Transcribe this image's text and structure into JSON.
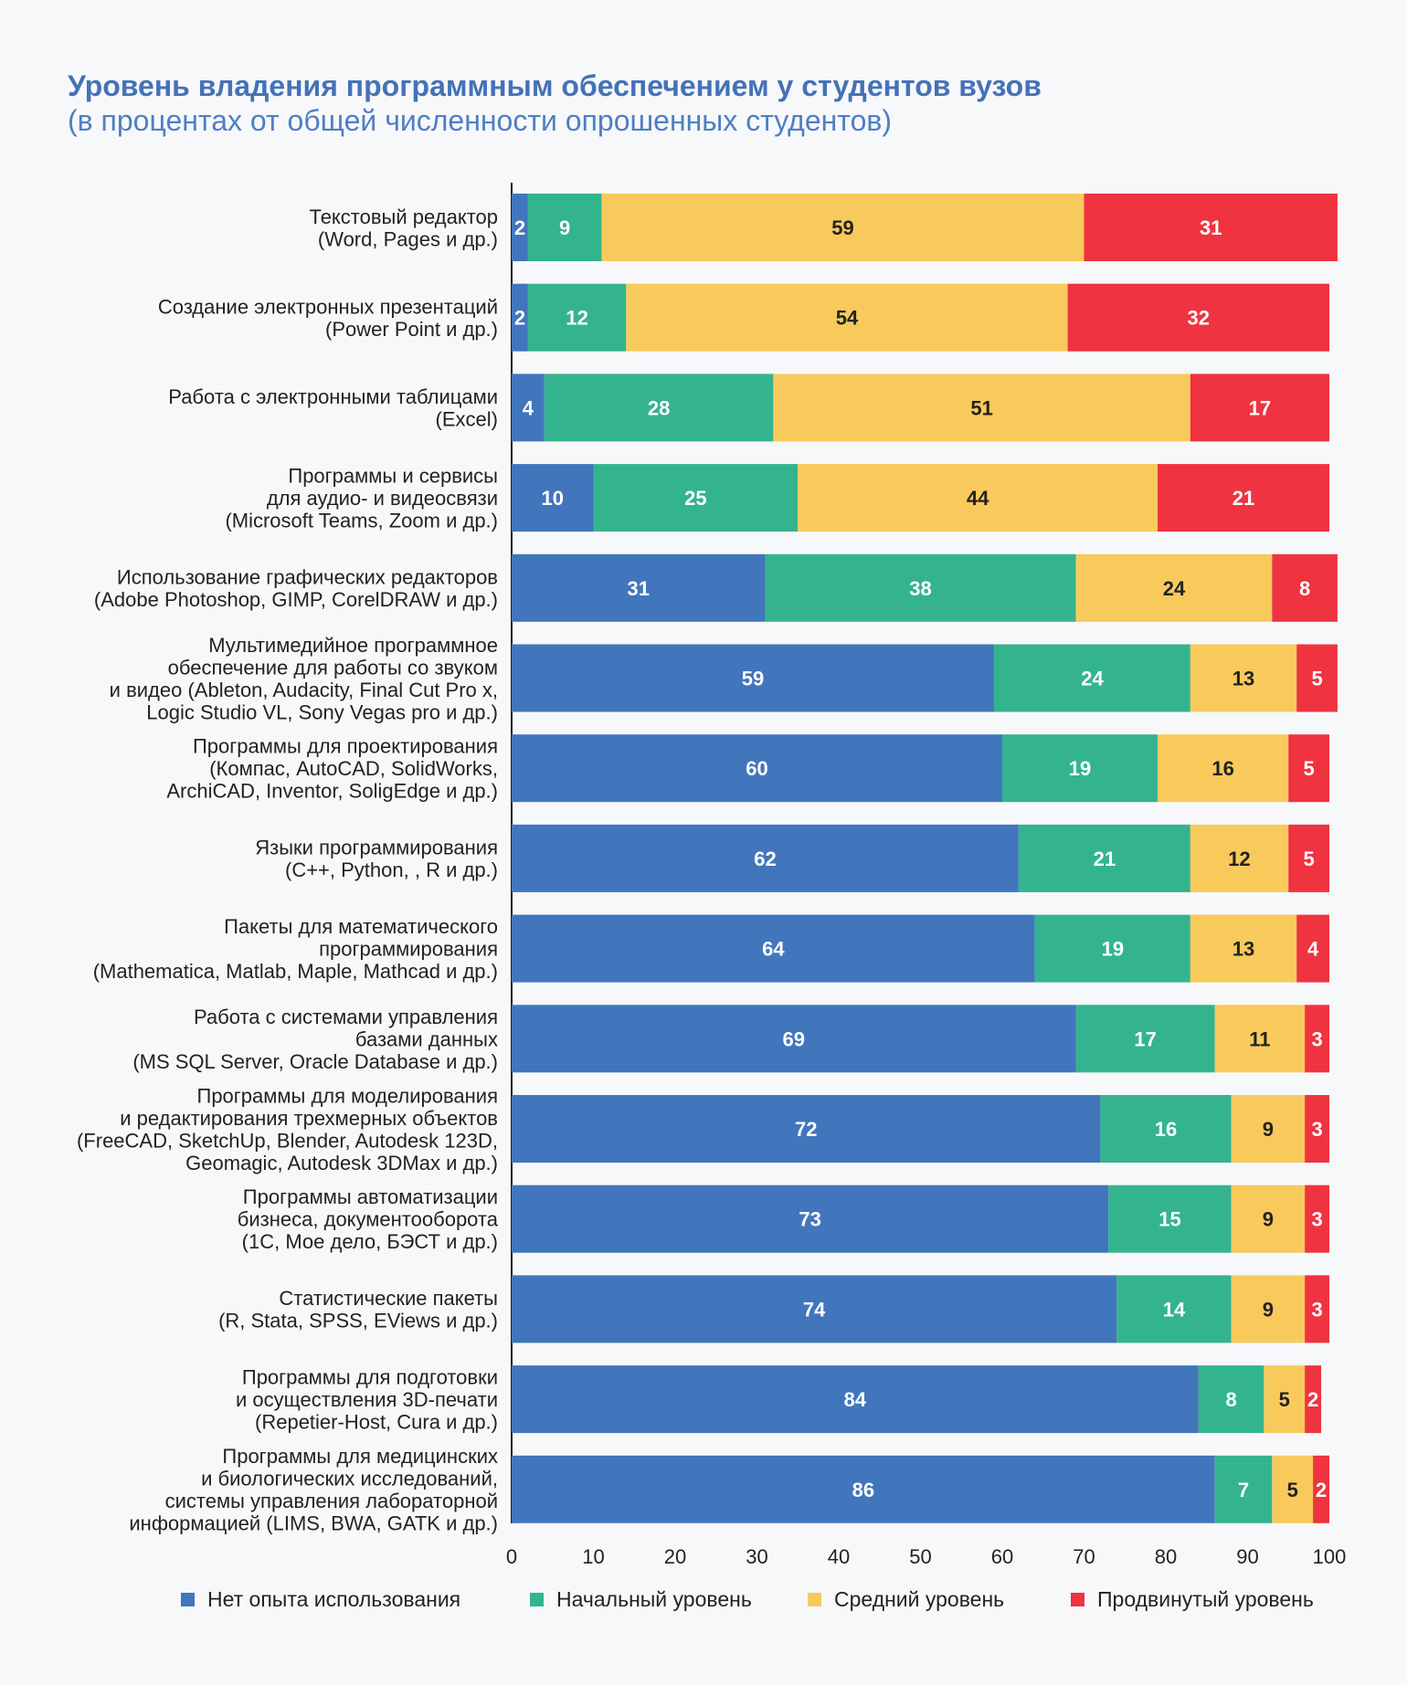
{
  "chart_data": {
    "type": "bar",
    "orientation": "horizontal",
    "stacked": true,
    "title": "Уровень владения программным обеспечением у студентов вузов",
    "subtitle": "(в процентах от общей численности опрошенных студентов)",
    "xlim": [
      0,
      100
    ],
    "xticks": [
      0,
      10,
      20,
      30,
      40,
      50,
      60,
      70,
      80,
      90,
      100
    ],
    "legend_position": "bottom",
    "categories": [
      [
        "Текстовый редактор",
        "(Word, Pages и др.)"
      ],
      [
        "Создание электронных презентаций",
        "(Power Point и др.)"
      ],
      [
        "Работа с электронными таблицами",
        "(Excel)"
      ],
      [
        "Программы и сервисы",
        "для аудио- и видеосвязи",
        "(Microsoft Teams, Zoom и др.)"
      ],
      [
        "Использование графических редакторов",
        "(Adobe Photoshop, GIMP, CorelDRAW и др.)"
      ],
      [
        "Мультимедийное программное",
        "обеспечение для работы со звуком",
        "и видео (Ableton, Audacity, Final Cut Pro x,",
        "Logic Studio VL, Sony Vegas pro и др.)"
      ],
      [
        "Программы для проектирования",
        "(Компас, AutoCAD, SolidWorks,",
        "ArchiCAD, Inventor, SoligEdge и др.)"
      ],
      [
        "Языки программирования",
        "(C++, Python, , R и др.)"
      ],
      [
        "Пакеты для математического",
        "программирования",
        "(Mathematica, Matlab, Maple, Mathcad и др.)"
      ],
      [
        "Работа с системами управления",
        "базами данных",
        "(MS SQL Server, Oracle Database и др.)"
      ],
      [
        "Программы для моделирования",
        "и редактирования трехмерных объектов",
        "(FreeCAD, SketchUp, Blender, Autodesk 123D,",
        "Geomagic, Autodesk 3DMax и др.)"
      ],
      [
        "Программы автоматизации",
        "бизнеса, документооборота",
        "(1С, Мое дело, БЭСТ и др.)"
      ],
      [
        "Статистические пакеты",
        "(R, Stata, SPSS, EViews и др.)"
      ],
      [
        "Программы для подготовки",
        "и осуществления 3D-печати",
        "(Repetier-Host, Cura и др.)"
      ],
      [
        "Программы для медицинских",
        "и биологических исследований,",
        "системы управления лабораторной",
        "информацией (LIMS, BWA, GATK и др.)"
      ]
    ],
    "series": [
      {
        "name": "Нет опыта использования",
        "color": "#4176bc",
        "label_color": "#ffffff",
        "values": [
          2,
          2,
          4,
          10,
          31,
          59,
          60,
          62,
          64,
          69,
          72,
          73,
          74,
          84,
          86
        ]
      },
      {
        "name": "Начальный уровень",
        "color": "#34b48e",
        "label_color": "#ffffff",
        "values": [
          9,
          12,
          28,
          25,
          38,
          24,
          19,
          21,
          19,
          17,
          16,
          15,
          14,
          8,
          7
        ]
      },
      {
        "name": "Средний уровень",
        "color": "#f8ca5c",
        "label_color": "#222222",
        "values": [
          59,
          54,
          51,
          44,
          24,
          13,
          16,
          12,
          13,
          11,
          9,
          9,
          9,
          5,
          5
        ]
      },
      {
        "name": "Продвинутый уровень",
        "color": "#ef3340",
        "label_color": "#ffffff",
        "values": [
          31,
          32,
          17,
          21,
          8,
          5,
          5,
          5,
          4,
          3,
          3,
          3,
          3,
          2,
          2
        ]
      }
    ]
  }
}
